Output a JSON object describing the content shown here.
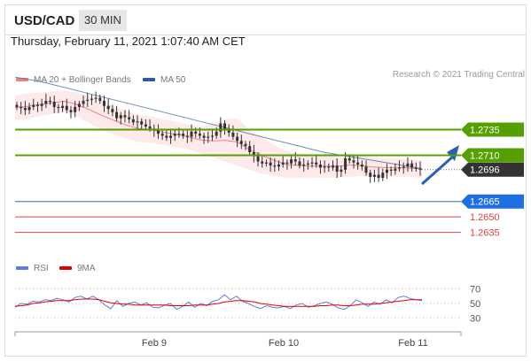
{
  "header": {
    "symbol": "USD/CAD",
    "timeframe": "30 MIN"
  },
  "timestamp": "Thursday, February 11, 2021 1:07:40 AM CET",
  "legend": {
    "bb_label": "MA 20 + Bollinger Bands",
    "ma50_label": "MA 50",
    "rsi_label": "RSI",
    "rsi_ma_label": "9MA"
  },
  "credit": "Research © 2021 Trading Central",
  "colors": {
    "bb": "#f08080",
    "bb_fill": "#fde3e3",
    "ma50": "#4a6fa5",
    "candle": "#333333",
    "resistance": "#55a000",
    "current": "#333333",
    "pivot": "#1f6fe0",
    "support": "#e04040",
    "rsi": "#5b7fd6",
    "rsi_ma": "#e00000",
    "arrow": "#2b5fb0"
  },
  "chart_data": [
    {
      "type": "candlestick",
      "title": "USD/CAD 30 MIN",
      "xlabel": "",
      "ylabel": "",
      "x_ticks": [
        "Feb 9",
        "Feb 10",
        "Feb 11"
      ],
      "ylim": [
        1.262,
        1.2775
      ],
      "close_path": [
        1.2757,
        1.2756,
        1.2754,
        1.2757,
        1.2759,
        1.2758,
        1.276,
        1.2763,
        1.2762,
        1.2757,
        1.2756,
        1.2758,
        1.2754,
        1.2752,
        1.2757,
        1.276,
        1.2763,
        1.2764,
        1.2765,
        1.2766,
        1.2763,
        1.2758,
        1.2755,
        1.2752,
        1.2746,
        1.2749,
        1.2747,
        1.2745,
        1.2742,
        1.2743,
        1.274,
        1.2738,
        1.2736,
        1.2734,
        1.2731,
        1.2729,
        1.2727,
        1.2729,
        1.2731,
        1.2731,
        1.2729,
        1.2728,
        1.2733,
        1.2731,
        1.2729,
        1.2727,
        1.2728,
        1.2729,
        1.2733,
        1.2741,
        1.2735,
        1.2732,
        1.2728,
        1.2724,
        1.2721,
        1.2719,
        1.2713,
        1.2709,
        1.2704,
        1.2702,
        1.2703,
        1.27,
        1.2699,
        1.2701,
        1.2703,
        1.2702,
        1.2706,
        1.2704,
        1.27,
        1.2701,
        1.2702,
        1.2703,
        1.2701,
        1.2698,
        1.2699,
        1.2698,
        1.27,
        1.2694,
        1.2696,
        1.2707,
        1.2705,
        1.2703,
        1.2701,
        1.2699,
        1.2693,
        1.2689,
        1.2691,
        1.2688,
        1.2693,
        1.2696,
        1.2695,
        1.2697,
        1.2698,
        1.2699,
        1.2702,
        1.2698,
        1.2697,
        1.2696
      ],
      "candle_marks": "see close_path; wick/body drawn around each close",
      "levels": [
        {
          "name": "resistance-2",
          "value": 1.2735,
          "label": "1.2735",
          "kind": "resistance"
        },
        {
          "name": "resistance-1",
          "value": 1.271,
          "label": "1.2710",
          "kind": "resistance"
        },
        {
          "name": "current-price",
          "value": 1.2696,
          "label": "1.2696",
          "kind": "current"
        },
        {
          "name": "pivot",
          "value": 1.2665,
          "label": "1.2665",
          "kind": "pivot"
        },
        {
          "name": "support-1",
          "value": 1.265,
          "label": "1.2650",
          "kind": "support"
        },
        {
          "name": "support-2",
          "value": 1.2635,
          "label": "1.2635",
          "kind": "support"
        }
      ],
      "ma50": [
        1.2786,
        1.2784,
        1.2782,
        1.2779,
        1.2776,
        1.2773,
        1.277,
        1.2767,
        1.2764,
        1.2761,
        1.2758,
        1.2755,
        1.2752,
        1.2749,
        1.2746,
        1.2743,
        1.274,
        1.2737,
        1.2734,
        1.2731,
        1.2728,
        1.2725,
        1.2722,
        1.2719,
        1.2716,
        1.2713,
        1.2711,
        1.2709,
        1.2707,
        1.2705,
        1.2703,
        1.2701,
        1.2699,
        1.2697
      ],
      "bb_upper": [
        1.2768,
        1.277,
        1.2771,
        1.2772,
        1.2773,
        1.2771,
        1.2768,
        1.2763,
        1.2758,
        1.2753,
        1.2749,
        1.2748,
        1.2745,
        1.2743,
        1.274,
        1.2738,
        1.274,
        1.2745,
        1.2746,
        1.2735,
        1.2728,
        1.272,
        1.2714,
        1.2712,
        1.2711,
        1.2711,
        1.271,
        1.2712,
        1.271,
        1.2708,
        1.2707,
        1.2707,
        1.2706,
        1.2705
      ],
      "bb_lower": [
        1.2745,
        1.2745,
        1.2748,
        1.275,
        1.2752,
        1.2748,
        1.2741,
        1.2735,
        1.273,
        1.2726,
        1.2723,
        1.2722,
        1.272,
        1.2718,
        1.2716,
        1.2712,
        1.2708,
        1.2704,
        1.27,
        1.2696,
        1.2692,
        1.269,
        1.2688,
        1.2688,
        1.2688,
        1.2688,
        1.2688,
        1.2689,
        1.269,
        1.2689,
        1.2689,
        1.2689,
        1.2689,
        1.2688
      ]
    },
    {
      "type": "line",
      "title": "RSI",
      "x_ticks": [
        "Feb 9",
        "Feb 10",
        "Feb 11"
      ],
      "y_ticks": [
        70,
        50,
        30
      ],
      "ylim": [
        20,
        80
      ],
      "series": [
        {
          "name": "RSI",
          "values": [
            45,
            50,
            49,
            53,
            52,
            55,
            54,
            57,
            55,
            52,
            58,
            60,
            56,
            60,
            55,
            48,
            43,
            54,
            46,
            50,
            52,
            48,
            51,
            45,
            44,
            48,
            50,
            42,
            46,
            52,
            45,
            50,
            47,
            53,
            55,
            62,
            55,
            60,
            53,
            50,
            46,
            43,
            47,
            45,
            44,
            46,
            43,
            48,
            50,
            45,
            47,
            50,
            52,
            49,
            44,
            42,
            47,
            55,
            51,
            46,
            52,
            49,
            55,
            51,
            58,
            60,
            57,
            55,
            54
          ]
        },
        {
          "name": "9MA",
          "values": [
            46,
            47,
            48,
            50,
            51,
            52,
            53,
            54,
            54,
            54,
            55,
            56,
            56,
            56,
            55,
            53,
            51,
            50,
            49,
            49,
            48,
            48,
            48,
            48,
            48,
            48,
            47,
            47,
            47,
            47,
            48,
            48,
            48,
            49,
            50,
            52,
            53,
            54,
            54,
            53,
            52,
            50,
            49,
            48,
            47,
            46,
            46,
            46,
            46,
            46,
            46,
            47,
            47,
            48,
            48,
            47,
            47,
            48,
            49,
            49,
            49,
            50,
            51,
            52,
            53,
            54,
            55,
            55,
            55
          ]
        }
      ]
    }
  ]
}
